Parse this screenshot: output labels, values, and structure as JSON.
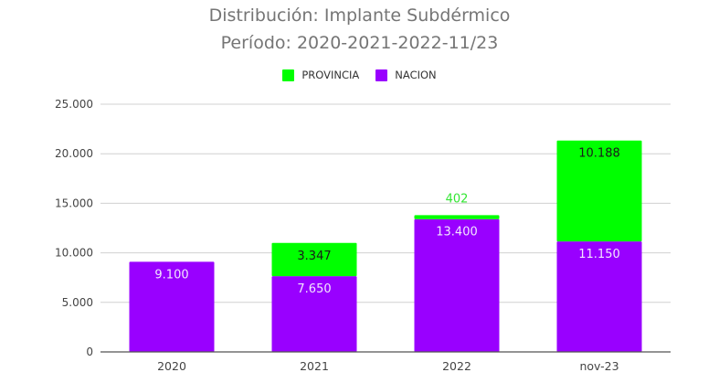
{
  "chart_data": {
    "type": "bar",
    "stacked": true,
    "title": "Distribución: Implante Subdérmico",
    "subtitle": "Período: 2020-2021-2022-11/23",
    "xlabel": "",
    "ylabel": "",
    "categories": [
      "2020",
      "2021",
      "2022",
      "nov-23"
    ],
    "series": [
      {
        "name": "NACION",
        "color": "#9900ff",
        "values": [
          9100,
          7650,
          13400,
          11150
        ],
        "labels": [
          "9.100",
          "7.650",
          "13.400",
          "11.150"
        ],
        "label_color": "#f3e6ff"
      },
      {
        "name": "PROVINCIA",
        "color": "#00ff00",
        "values": [
          0,
          3347,
          402,
          10188
        ],
        "labels": [
          "",
          "3.347",
          "402",
          "10.188"
        ],
        "label_color": "#1a1a1a",
        "outside_label_color": "#33e633"
      }
    ],
    "ylim": [
      0,
      25000
    ],
    "yticks": [
      0,
      5000,
      10000,
      15000,
      20000,
      25000
    ],
    "ytick_labels": [
      "0",
      "5.000",
      "10.000",
      "15.000",
      "20.000",
      "25.000"
    ],
    "grid": true,
    "legend": [
      "PROVINCIA",
      "NACION"
    ],
    "legend_position": "top-center"
  }
}
